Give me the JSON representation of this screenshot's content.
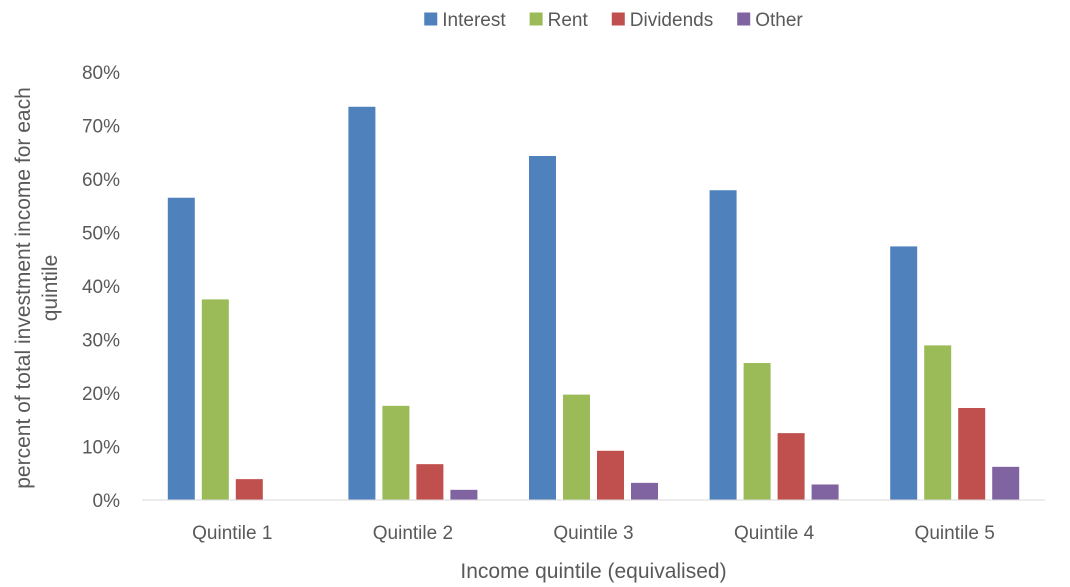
{
  "chart_data": {
    "type": "bar",
    "title": "",
    "xlabel": "Income quintile (equivalised)",
    "ylabel": "percent of total investment income for each quintile",
    "ylabel_lines": [
      "percent of total investment income for each",
      "quintile"
    ],
    "categories": [
      "Quintile 1",
      "Quintile 2",
      "Quintile 3",
      "Quintile 4",
      "Quintile 5"
    ],
    "ylim": [
      0,
      80
    ],
    "yticks": [
      0,
      10,
      20,
      30,
      40,
      50,
      60,
      70,
      80
    ],
    "ytick_suffix": "%",
    "grid": false,
    "legend_position": "top",
    "series": [
      {
        "name": "Interest",
        "color": "#4F81BD",
        "values": [
          56.5,
          73.5,
          64.3,
          57.9,
          47.4
        ]
      },
      {
        "name": "Rent",
        "color": "#9BBB59",
        "values": [
          37.5,
          17.6,
          19.7,
          25.6,
          28.9
        ]
      },
      {
        "name": "Dividends",
        "color": "#C0504D",
        "values": [
          3.9,
          6.7,
          9.2,
          12.5,
          17.2
        ]
      },
      {
        "name": "Other",
        "color": "#8064A2",
        "values": [
          0,
          1.9,
          3.2,
          2.9,
          6.2
        ]
      }
    ]
  }
}
